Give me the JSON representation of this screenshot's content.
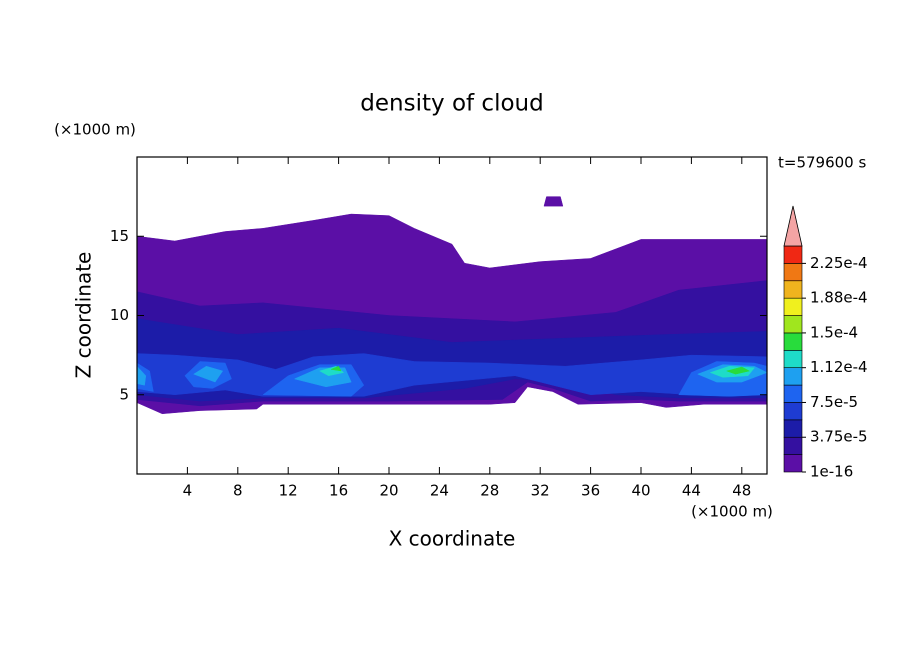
{
  "chart_data": {
    "type": "contour",
    "title": "density of cloud",
    "x_label": "X coordinate",
    "y_label": "Z coordinate",
    "x_unit": "(×1000 m)",
    "y_unit": "(×1000 m)",
    "time_label": "t=579600 s",
    "xlim": [
      0,
      50
    ],
    "ylim": [
      0,
      20
    ],
    "xticks": [
      4,
      8,
      12,
      16,
      20,
      24,
      28,
      32,
      36,
      40,
      44,
      48
    ],
    "yticks": [
      5,
      10,
      15
    ],
    "clim": [
      1e-16,
      0.00024375
    ],
    "colors": [
      "#5b0fa6",
      "#3410a0",
      "#1c1ca8",
      "#1e3cd2",
      "#1e64f0",
      "#1ea0f0",
      "#1edcc8",
      "#28dc3c",
      "#a0e61e",
      "#f0f01e",
      "#f0b41e",
      "#f07814",
      "#f02814"
    ],
    "extend_color": "#f4a4a4",
    "cticks": [
      {
        "value": 1e-16,
        "label": "1e-16"
      },
      {
        "value": 3.75e-05,
        "label": "3.75e-5"
      },
      {
        "value": 7.5e-05,
        "label": "7.5e-5"
      },
      {
        "value": 0.0001125,
        "label": "1.12e-4"
      },
      {
        "value": 0.00015,
        "label": "1.5e-4"
      },
      {
        "value": 0.0001875,
        "label": "1.88e-4"
      },
      {
        "value": 0.000225,
        "label": "2.25e-4"
      }
    ],
    "regions": [
      {
        "level": 1e-16,
        "outline": [
          [
            0,
            15
          ],
          [
            3,
            14.7
          ],
          [
            5,
            15
          ],
          [
            7,
            15.3
          ],
          [
            10,
            15.5
          ],
          [
            14,
            16
          ],
          [
            17,
            16.4
          ],
          [
            20,
            16.3
          ],
          [
            22,
            15.5
          ],
          [
            25,
            14.5
          ],
          [
            26,
            13.3
          ],
          [
            28,
            13
          ],
          [
            32,
            13.4
          ],
          [
            36,
            13.6
          ],
          [
            40,
            14.8
          ],
          [
            50,
            14.8
          ],
          [
            50,
            4.4
          ],
          [
            45,
            4.4
          ],
          [
            42,
            4.2
          ],
          [
            40,
            4.5
          ],
          [
            35,
            4.4
          ],
          [
            33,
            5.2
          ],
          [
            31,
            5.5
          ],
          [
            30,
            4.5
          ],
          [
            28,
            4.4
          ],
          [
            20,
            4.4
          ],
          [
            10,
            4.4
          ],
          [
            9.5,
            4.1
          ],
          [
            5,
            4
          ],
          [
            2,
            3.8
          ],
          [
            0,
            4.5
          ]
        ]
      },
      {
        "level": 1e-16,
        "outline": [
          [
            32.3,
            16.9
          ],
          [
            33.8,
            16.9
          ],
          [
            33.6,
            17.5
          ],
          [
            32.5,
            17.5
          ]
        ]
      },
      {
        "level": 1.875e-05,
        "outline": [
          [
            0,
            11.5
          ],
          [
            5,
            10.6
          ],
          [
            10,
            10.8
          ],
          [
            15,
            10.4
          ],
          [
            20,
            10
          ],
          [
            30,
            9.6
          ],
          [
            38,
            10.2
          ],
          [
            43,
            11.6
          ],
          [
            50,
            12.2
          ],
          [
            50,
            4.6
          ],
          [
            43,
            4.6
          ],
          [
            40,
            4.7
          ],
          [
            36,
            4.6
          ],
          [
            33,
            5.4
          ],
          [
            31,
            5.8
          ],
          [
            29,
            4.7
          ],
          [
            20,
            4.6
          ],
          [
            10,
            4.6
          ],
          [
            5,
            4.3
          ],
          [
            0,
            4.7
          ]
        ]
      },
      {
        "level": 3.75e-05,
        "outline": [
          [
            0,
            9.8
          ],
          [
            8,
            8.8
          ],
          [
            16,
            9.2
          ],
          [
            25,
            8.3
          ],
          [
            35,
            8.6
          ],
          [
            42,
            8.8
          ],
          [
            50,
            9
          ],
          [
            50,
            4.8
          ],
          [
            43,
            4.8
          ],
          [
            38,
            5
          ],
          [
            34,
            5.8
          ],
          [
            30,
            6
          ],
          [
            26,
            5.4
          ],
          [
            18,
            4.8
          ],
          [
            10,
            4.8
          ],
          [
            5,
            4.6
          ],
          [
            0,
            5
          ]
        ]
      },
      {
        "level": 5.625e-05,
        "outline": [
          [
            0,
            7.6
          ],
          [
            3,
            7.5
          ],
          [
            8,
            7.2
          ],
          [
            11,
            6.6
          ],
          [
            14,
            7.4
          ],
          [
            18,
            7.6
          ],
          [
            22,
            7.1
          ],
          [
            28,
            7
          ],
          [
            34,
            6.8
          ],
          [
            40,
            7.2
          ],
          [
            44,
            7.5
          ],
          [
            50,
            7.4
          ],
          [
            50,
            5
          ],
          [
            44,
            5
          ],
          [
            40,
            5.2
          ],
          [
            36,
            5
          ],
          [
            30,
            6.2
          ],
          [
            22,
            5.6
          ],
          [
            18,
            4.9
          ],
          [
            10,
            4.9
          ],
          [
            7,
            5.3
          ],
          [
            3,
            5
          ],
          [
            0,
            5.2
          ]
        ]
      },
      {
        "level": 7.5e-05,
        "outline": [
          [
            0,
            7
          ],
          [
            1,
            6.5
          ],
          [
            1.3,
            5.2
          ],
          [
            0,
            5.4
          ]
        ]
      },
      {
        "level": 7.5e-05,
        "outline": [
          [
            3.8,
            6.2
          ],
          [
            5,
            7.1
          ],
          [
            7,
            7
          ],
          [
            7.5,
            6
          ],
          [
            6,
            5.4
          ],
          [
            4.5,
            5.5
          ]
        ]
      },
      {
        "level": 7.5e-05,
        "outline": [
          [
            10,
            5
          ],
          [
            12,
            6.2
          ],
          [
            14.5,
            6.9
          ],
          [
            17,
            6.9
          ],
          [
            18,
            5.6
          ],
          [
            17,
            4.9
          ]
        ]
      },
      {
        "level": 7.5e-05,
        "outline": [
          [
            43,
            5
          ],
          [
            44,
            6.4
          ],
          [
            46,
            7.1
          ],
          [
            49,
            7
          ],
          [
            50,
            6.8
          ],
          [
            50,
            5
          ],
          [
            47,
            4.9
          ]
        ]
      },
      {
        "level": 9.375e-05,
        "outline": [
          [
            0,
            6.8
          ],
          [
            0.7,
            6.2
          ],
          [
            0.6,
            5.6
          ],
          [
            0,
            5.7
          ]
        ]
      },
      {
        "level": 9.375e-05,
        "outline": [
          [
            4.5,
            6.3
          ],
          [
            5.5,
            6.8
          ],
          [
            6.8,
            6.5
          ],
          [
            6.2,
            5.8
          ]
        ]
      },
      {
        "level": 9.375e-05,
        "outline": [
          [
            12.5,
            6
          ],
          [
            14.5,
            6.7
          ],
          [
            16.5,
            6.7
          ],
          [
            17,
            5.8
          ],
          [
            15,
            5.5
          ]
        ]
      },
      {
        "level": 9.375e-05,
        "outline": [
          [
            44.5,
            6.3
          ],
          [
            46.5,
            6.9
          ],
          [
            49,
            6.8
          ],
          [
            50,
            6.4
          ],
          [
            48,
            5.8
          ],
          [
            46,
            5.8
          ]
        ]
      },
      {
        "level": 0.0001125,
        "outline": [
          [
            14.5,
            6.5
          ],
          [
            15.8,
            6.8
          ],
          [
            16.4,
            6.4
          ],
          [
            15.2,
            6.2
          ]
        ]
      },
      {
        "level": 0.0001125,
        "outline": [
          [
            45.5,
            6.4
          ],
          [
            47,
            6.8
          ],
          [
            49,
            6.7
          ],
          [
            48.5,
            6.2
          ],
          [
            46.5,
            6.1
          ]
        ]
      },
      {
        "level": 0.00013125,
        "outline": [
          [
            15.4,
            6.6
          ],
          [
            16,
            6.8
          ],
          [
            16.2,
            6.5
          ]
        ]
      },
      {
        "level": 0.00013125,
        "outline": [
          [
            46.8,
            6.5
          ],
          [
            48,
            6.75
          ],
          [
            48.6,
            6.5
          ],
          [
            47.5,
            6.3
          ]
        ]
      }
    ]
  }
}
